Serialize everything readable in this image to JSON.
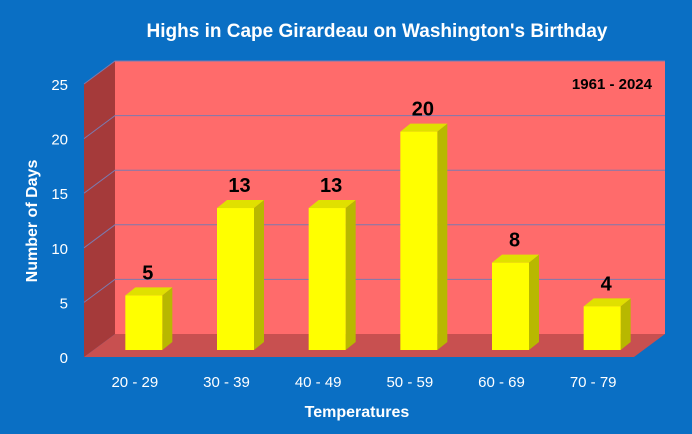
{
  "colors": {
    "background": "#0a6fc4",
    "plot_back": "#ff6b6b",
    "plot_side": "#a53a3a",
    "plot_floor": "#c85050",
    "bar_front": "#ffff00",
    "bar_side": "#b8b800",
    "bar_top": "#e0e000",
    "grid": "#7b7bb0",
    "white": "#ffffff",
    "label": "#000000"
  },
  "chart_data": {
    "type": "bar",
    "title": "Highs in Cape Girardeau on Washington's Birthday",
    "annotation": "1961 - 2024",
    "xlabel": "Temperatures",
    "ylabel": "Number of Days",
    "categories": [
      "20 - 29",
      "30 - 39",
      "40 - 49",
      "50 - 59",
      "60 - 69",
      "70 - 79"
    ],
    "values": [
      5,
      13,
      13,
      20,
      8,
      4
    ],
    "ylim": [
      0,
      25
    ],
    "yticks": [
      0,
      5,
      10,
      15,
      20,
      25
    ],
    "grid": true,
    "style": "3d"
  }
}
